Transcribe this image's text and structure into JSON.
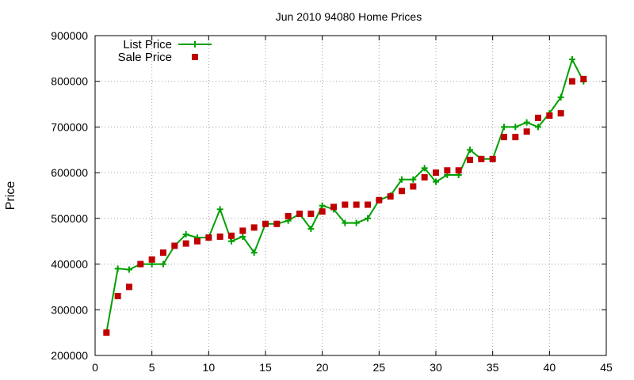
{
  "chart_data": {
    "type": "line",
    "title": "Jun 2010 94080 Home Prices",
    "xlabel": "",
    "ylabel": "Price",
    "xlim": [
      0,
      45
    ],
    "ylim": [
      200000,
      900000
    ],
    "xticks": [
      0,
      5,
      10,
      15,
      20,
      25,
      30,
      35,
      40,
      45
    ],
    "yticks": [
      200000,
      300000,
      400000,
      500000,
      600000,
      700000,
      800000,
      900000
    ],
    "grid": true,
    "legend_position": "top-left",
    "series": [
      {
        "name": "List Price",
        "style": "line-plus",
        "color": "#00a000",
        "x": [
          1,
          2,
          3,
          4,
          5,
          6,
          7,
          8,
          9,
          10,
          11,
          12,
          13,
          14,
          15,
          16,
          17,
          18,
          19,
          20,
          21,
          22,
          23,
          24,
          25,
          26,
          27,
          28,
          29,
          30,
          31,
          32,
          33,
          34,
          35,
          36,
          37,
          38,
          39,
          40,
          41,
          42,
          43
        ],
        "y": [
          250000,
          390000,
          388000,
          400000,
          400000,
          400000,
          440000,
          465000,
          458000,
          458000,
          520000,
          450000,
          460000,
          425000,
          488000,
          488000,
          495000,
          510000,
          477000,
          528000,
          520000,
          490000,
          490000,
          500000,
          540000,
          550000,
          585000,
          585000,
          610000,
          580000,
          595000,
          595000,
          650000,
          630000,
          630000,
          700000,
          700000,
          710000,
          700000,
          730000,
          765000,
          848000,
          800000
        ]
      },
      {
        "name": "Sale Price",
        "style": "square-points",
        "color": "#c00000",
        "x": [
          1,
          2,
          3,
          4,
          5,
          6,
          7,
          8,
          9,
          10,
          11,
          12,
          13,
          14,
          15,
          16,
          17,
          18,
          19,
          20,
          21,
          22,
          23,
          24,
          25,
          26,
          27,
          28,
          29,
          30,
          31,
          32,
          33,
          34,
          35,
          36,
          37,
          38,
          39,
          40,
          41,
          42,
          43
        ],
        "y": [
          250000,
          330000,
          350000,
          400000,
          410000,
          425000,
          440000,
          445000,
          450000,
          458000,
          460000,
          462000,
          473000,
          480000,
          488000,
          488000,
          505000,
          510000,
          510000,
          515000,
          525000,
          530000,
          530000,
          530000,
          540000,
          548000,
          560000,
          570000,
          590000,
          600000,
          605000,
          605000,
          628000,
          630000,
          630000,
          678000,
          678000,
          690000,
          720000,
          725000,
          730000,
          800000,
          805000
        ]
      }
    ]
  }
}
